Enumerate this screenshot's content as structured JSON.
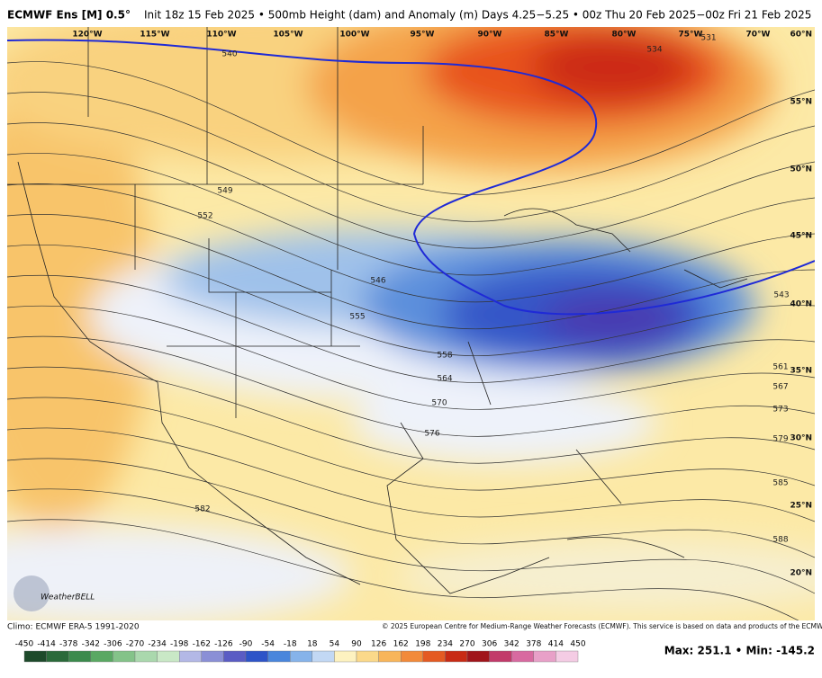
{
  "header": {
    "model": "ECMWF Ens [M] 0.5°",
    "title": "Init 18z 15 Feb 2025 • 500mb Height (dam) and Anomaly (m)  Days 4.25−5.25 • 00z Thu 20 Feb 2025−00z Fri 21 Feb 2025"
  },
  "map": {
    "longitudes": [
      "120°W",
      "115°W",
      "110°W",
      "105°W",
      "100°W",
      "95°W",
      "90°W",
      "85°W",
      "80°W",
      "75°W",
      "70°W"
    ],
    "latitudes": [
      "60°N",
      "55°N",
      "50°N",
      "45°N",
      "40°N",
      "35°N",
      "30°N",
      "25°N",
      "20°N"
    ],
    "contour_labels": [
      "540",
      "534",
      "531",
      "549",
      "552",
      "546",
      "555",
      "558",
      "564",
      "570",
      "576",
      "582",
      "543",
      "561",
      "567",
      "573",
      "579",
      "585",
      "588"
    ]
  },
  "footer": {
    "climo": "Climo: ECMWF ERA-5 1991-2020",
    "copyright": "© 2025 European Centre for Medium-Range Weather Forecasts (ECMWF). This service is based on data and products of the ECMWF.",
    "logo": "WeatherBELL",
    "extremes": "Max: 251.1 • Min: -145.2"
  },
  "colorbar": {
    "ticks": [
      -450,
      -414,
      -378,
      -342,
      -306,
      -270,
      -234,
      -198,
      -162,
      -126,
      -90,
      -54,
      -18,
      18,
      54,
      90,
      126,
      162,
      198,
      234,
      270,
      306,
      342,
      378,
      414,
      450
    ]
  }
}
